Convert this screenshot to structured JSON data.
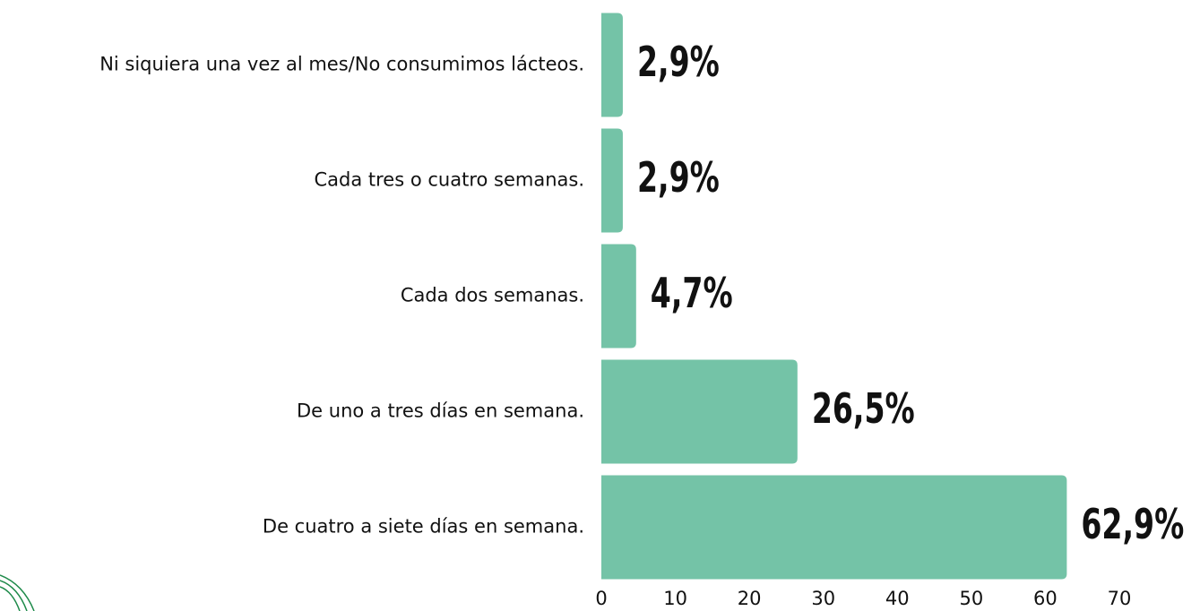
{
  "chart_data": {
    "type": "bar",
    "orientation": "horizontal",
    "categories": [
      "Ni siquiera una vez al mes/No consumimos lácteos.",
      "Cada tres o cuatro semanas.",
      "Cada dos semanas.",
      "De uno a tres días en semana.",
      "De cuatro a siete días en semana."
    ],
    "values": [
      2.9,
      2.9,
      4.7,
      26.5,
      62.9
    ],
    "value_labels": [
      "2,9%",
      "2,9%",
      "4,7%",
      "26,5%",
      "62,9%"
    ],
    "color": "#74c3a7",
    "xlim": [
      0,
      70
    ],
    "xticks": [
      0,
      10,
      20,
      30,
      40,
      50,
      60,
      70
    ],
    "grid": false
  }
}
